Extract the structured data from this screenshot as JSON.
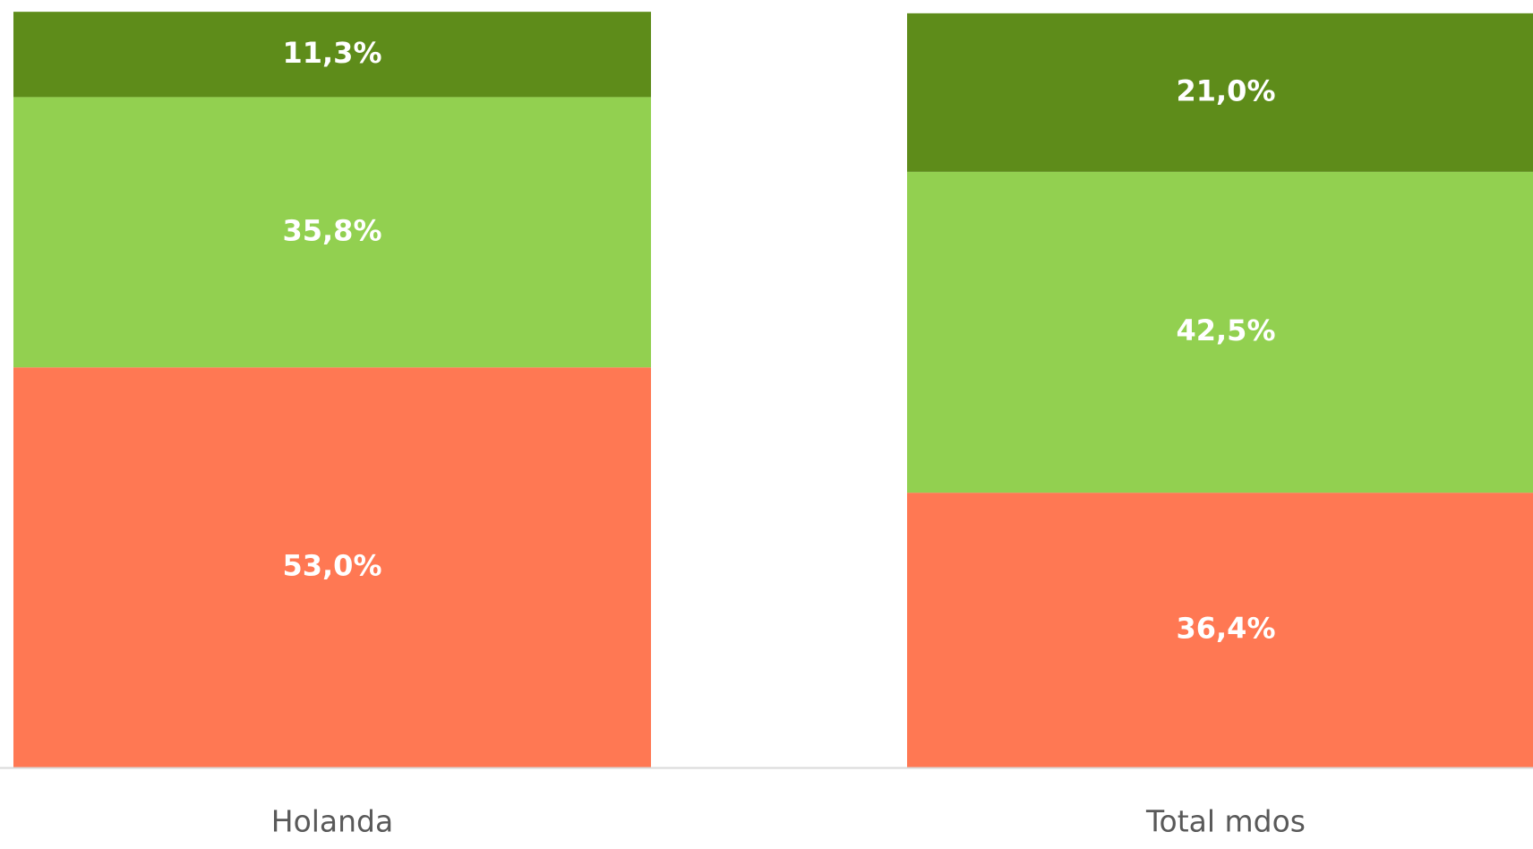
{
  "chart_data": {
    "type": "stacked_bar",
    "categories": [
      "Holanda",
      "Total mdos"
    ],
    "series": [
      {
        "color": "#ff7853",
        "values": [
          53.0,
          36.4
        ],
        "value_labels": [
          "53,0%",
          "36,4%"
        ]
      },
      {
        "color": "#92d050",
        "values": [
          35.8,
          42.5
        ],
        "value_labels": [
          "35,8%",
          "42,5%"
        ]
      },
      {
        "color": "#5e8c1a",
        "values": [
          11.3,
          21.0
        ],
        "value_labels": [
          "11,3%",
          "21,0%"
        ]
      }
    ],
    "ylim": [
      0,
      100
    ]
  }
}
